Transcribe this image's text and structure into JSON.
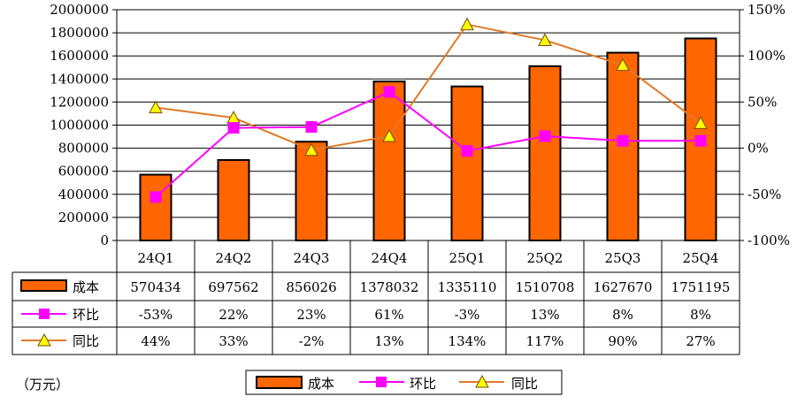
{
  "chart_data": {
    "type": "bar",
    "categories": [
      "24Q1",
      "24Q2",
      "24Q3",
      "24Q4",
      "25Q1",
      "25Q2",
      "25Q3",
      "25Q4"
    ],
    "series": [
      {
        "name": "成本",
        "kind": "bar",
        "axis": "left",
        "values": [
          570434,
          697562,
          856026,
          1378032,
          1335110,
          1510708,
          1627670,
          1751195
        ],
        "labels": [
          "570434",
          "697562",
          "856026",
          "1378032",
          "1335110",
          "1510708",
          "1627670",
          "1751195"
        ],
        "color": "#FF6600"
      },
      {
        "name": "环比",
        "kind": "line",
        "axis": "right",
        "values": [
          -53,
          22,
          23,
          61,
          -3,
          13,
          8,
          8
        ],
        "labels": [
          "-53%",
          "22%",
          "23%",
          "61%",
          "-3%",
          "13%",
          "8%",
          "8%"
        ],
        "color": "#FF00FF",
        "marker": "square"
      },
      {
        "name": "同比",
        "kind": "line",
        "axis": "right",
        "values": [
          44,
          33,
          -2,
          13,
          134,
          117,
          90,
          27
        ],
        "labels": [
          "44%",
          "33%",
          "-2%",
          "13%",
          "134%",
          "117%",
          "90%",
          "27%"
        ],
        "color": "#E07A28",
        "marker": "triangle",
        "marker_fill": "#FFFF00"
      }
    ],
    "y_left": {
      "min": 0,
      "max": 2000000,
      "step": 200000,
      "ticks": [
        "0",
        "200000",
        "400000",
        "600000",
        "800000",
        "1000000",
        "1200000",
        "1400000",
        "1600000",
        "1800000",
        "2000000"
      ]
    },
    "y_right": {
      "min": -100,
      "max": 150,
      "step": 50,
      "ticks": [
        "-100%",
        "-50%",
        "0%",
        "50%",
        "100%",
        "150%"
      ]
    },
    "legend_position": "bottom",
    "unit_note": "（万元）",
    "data_table": true
  }
}
